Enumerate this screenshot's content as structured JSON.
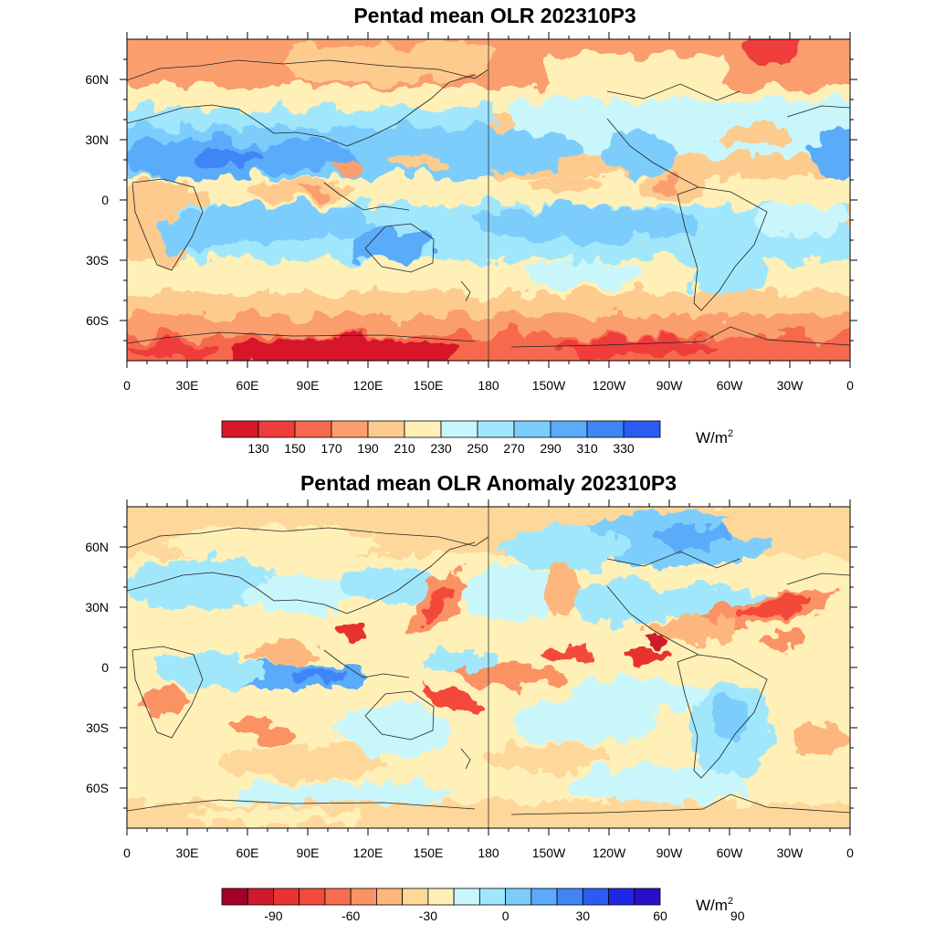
{
  "x_tick_labels": [
    "0",
    "30E",
    "60E",
    "90E",
    "120E",
    "150E",
    "180",
    "150W",
    "120W",
    "90W",
    "60W",
    "30W",
    "0"
  ],
  "y_tick_labels": [
    "60N",
    "30N",
    "0",
    "30S",
    "60S"
  ],
  "y_tick_values": [
    60,
    30,
    0,
    -30,
    -60
  ],
  "lat_range": [
    -80,
    80
  ],
  "panels": [
    {
      "title": "Pentad mean OLR 202310P3",
      "colorbar": {
        "labels": [
          "130",
          "150",
          "170",
          "190",
          "210",
          "230",
          "250",
          "270",
          "290",
          "310",
          "330"
        ],
        "colors": [
          "#d7192b",
          "#ee3d3b",
          "#f7694e",
          "#fb9e6e",
          "#fdcb8e",
          "#fff0b8",
          "#c8f6fb",
          "#a1e7fc",
          "#7bcdfc",
          "#5aabfa",
          "#3f85f5",
          "#2a5cf3"
        ],
        "unit": "W/m",
        "unit_sup": "2"
      }
    },
    {
      "title": "Pentad mean OLR Anomaly 202310P3",
      "colorbar": {
        "labels": [
          "-90",
          "-60",
          "-30",
          "0",
          "30",
          "60",
          "90"
        ],
        "label_at_boundary": [
          2,
          5,
          8,
          11,
          14,
          17,
          20
        ],
        "colors": [
          "#a50026",
          "#cd1a2c",
          "#e8332e",
          "#f34a3b",
          "#f86d4f",
          "#fb9263",
          "#fdb67d",
          "#fed79a",
          "#fff0b8",
          "#c8f6fb",
          "#a1e7fc",
          "#7bcdfc",
          "#5aabfa",
          "#3f85f5",
          "#2a5cf3",
          "#1f27e6",
          "#2810c8"
        ],
        "unit": "W/m",
        "unit_sup": "2"
      }
    }
  ]
}
